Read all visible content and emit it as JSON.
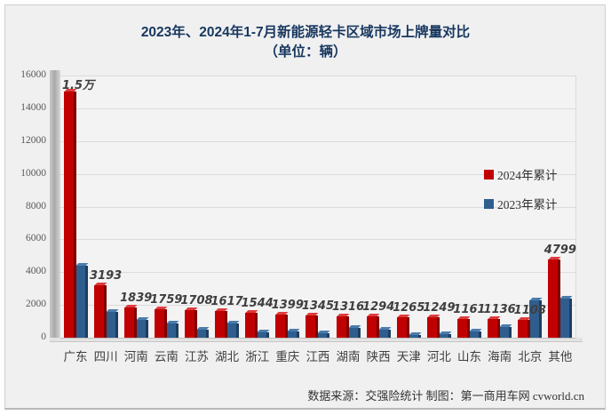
{
  "title": {
    "line1": "2023年、2024年1-7月新能源轻卡区域市场上牌量对比",
    "line2": "（单位：辆）"
  },
  "legend": [
    {
      "label": "2024年累计",
      "color": "#c00000"
    },
    {
      "label": "2023年累计",
      "color": "#2f5e8e"
    }
  ],
  "footer": "数据来源：交强险统计 制图：第一商用车网 cvworld.cn",
  "chart_data": {
    "type": "bar",
    "title": "2023年、2024年1-7月新能源轻卡区域市场上牌量对比（单位：辆）",
    "categories": [
      "广东",
      "四川",
      "河南",
      "云南",
      "江苏",
      "湖北",
      "浙江",
      "重庆",
      "江西",
      "湖南",
      "陕西",
      "天津",
      "河北",
      "山东",
      "海南",
      "北京",
      "其他"
    ],
    "series": [
      {
        "name": "2024年累计",
        "color": "#c00000",
        "color_dark": "#7f0000",
        "color_light": "#dd3c3c",
        "values": [
          15000,
          3193,
          1839,
          1759,
          1708,
          1617,
          1544,
          1399,
          1345,
          1316,
          1294,
          1265,
          1249,
          1161,
          1136,
          1108,
          4799
        ],
        "labels": [
          "1.5万",
          "3193",
          "1839",
          "1759",
          "1708",
          "1617",
          "1544",
          "1399",
          "1345",
          "1316",
          "1294",
          "1265",
          "1249",
          "1161",
          "1136",
          "1108",
          "4799"
        ]
      },
      {
        "name": "2023年累计",
        "color": "#2f5e8e",
        "color_dark": "#1d3e60",
        "color_light": "#4a7dab",
        "values": [
          4400,
          1550,
          1080,
          870,
          500,
          850,
          300,
          380,
          250,
          600,
          480,
          180,
          220,
          400,
          640,
          2280,
          2370
        ],
        "labels": null
      }
    ],
    "ylim": [
      0,
      16000
    ],
    "ytick_step": 2000,
    "ytick_labels": [
      "0",
      "2000",
      "4000",
      "6000",
      "8000",
      "10000",
      "12000",
      "14000",
      "16000"
    ],
    "grid": true,
    "legend_position": "inside-right"
  }
}
